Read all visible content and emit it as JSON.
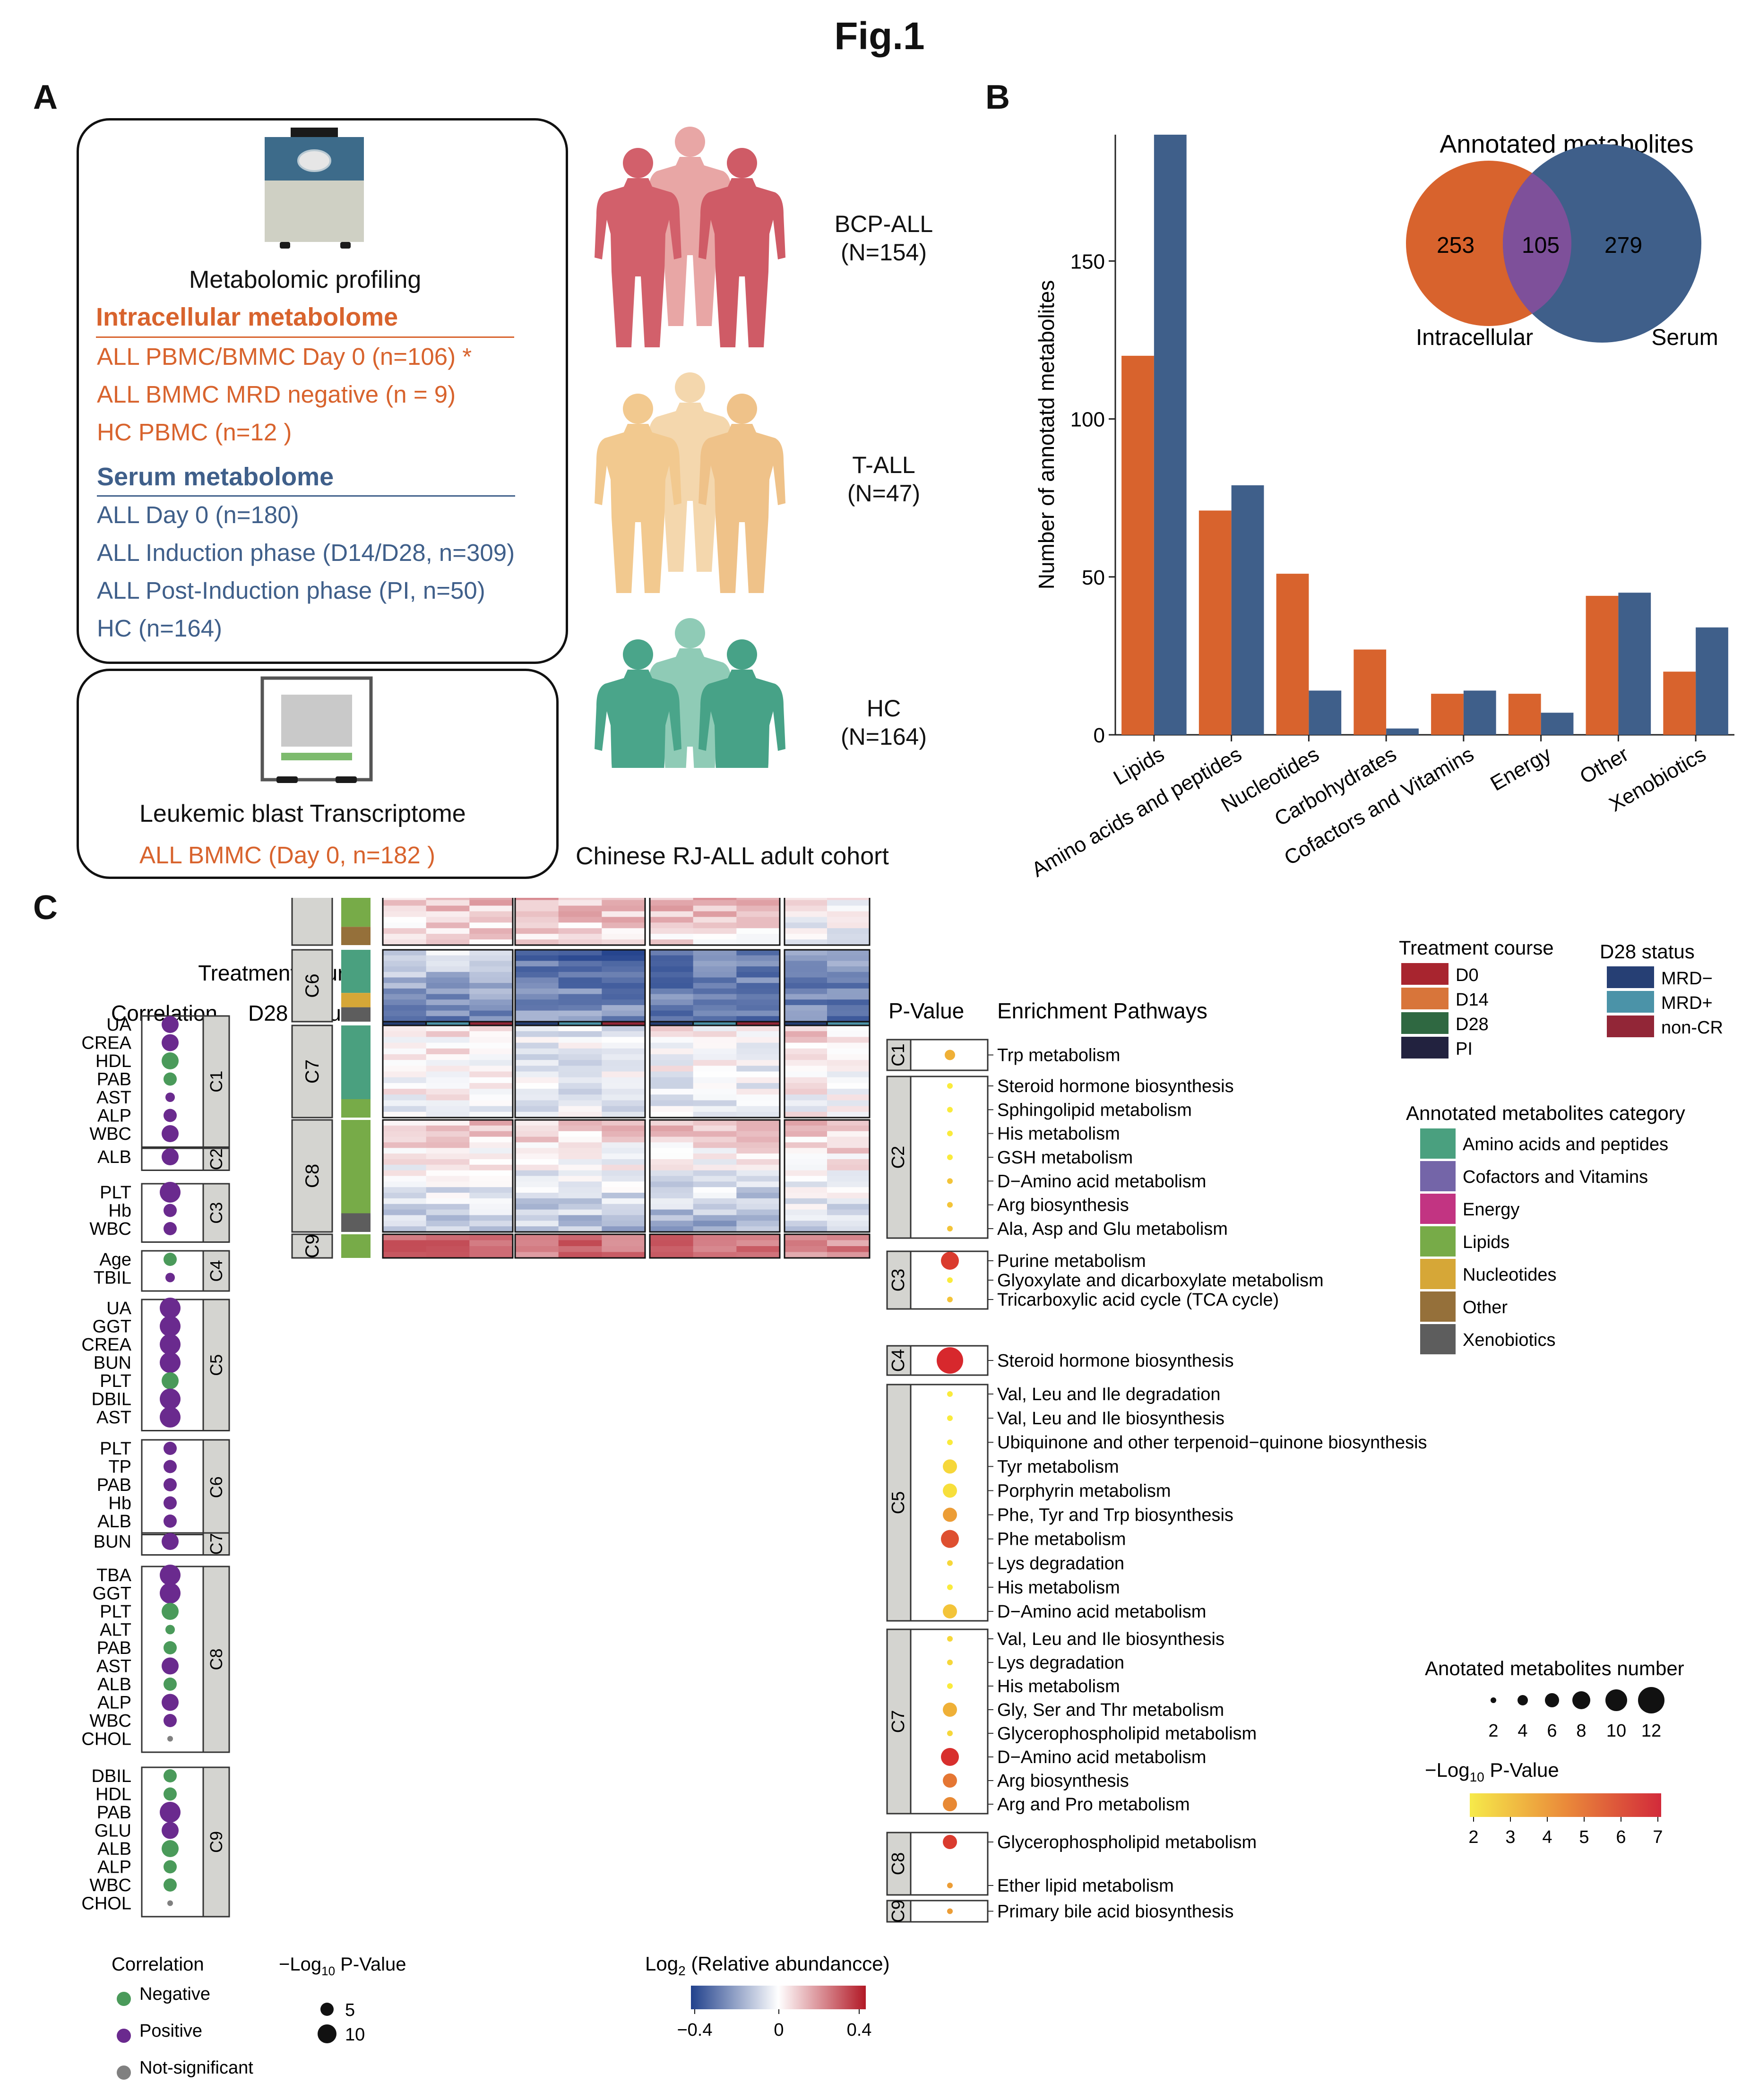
{
  "figure_title": "Fig.1",
  "panels": {
    "a": "A",
    "b": "B",
    "c": "C"
  },
  "panelA": {
    "metabolomic_profiling": "Metabolomic profiling",
    "intracellular_header": "Intracellular metabolome",
    "intracellular_items": [
      "ALL PBMC/BMMC Day 0 (n=106) *",
      "ALL BMMC MRD negative (n = 9)",
      "HC  PBMC (n=12 )"
    ],
    "serum_header": "Serum metabolome",
    "serum_items": [
      "ALL Day 0 (n=180)",
      "ALL Induction phase (D14/D28, n=309)",
      "ALL Post-Induction phase (PI, n=50)",
      "HC (n=164)"
    ],
    "transcriptome_title": "Leukemic blast Transcriptome",
    "transcriptome_item": "ALL BMMC (Day 0, n=182 )",
    "cohorts": [
      {
        "name": "BCP-ALL",
        "n": "(N=154)",
        "color": "#d2606b"
      },
      {
        "name": "T-ALL",
        "n": "(N=47)",
        "color": "#f2c98f"
      },
      {
        "name": "HC",
        "n": "(N=164)",
        "color": "#4aa58a"
      }
    ],
    "cohort_caption": "Chinese RJ-ALL adult cohort"
  },
  "chart_data": {
    "type": "bar",
    "ylabel": "Number of annotatd metabolites",
    "ylim": [
      0,
      190
    ],
    "yticks": [
      0,
      50,
      100,
      150
    ],
    "categories": [
      "Lipids",
      "Amino acids and peptides",
      "Nucleotides",
      "Carbohydrates",
      "Cofactors and Vitamins",
      "Energy",
      "Other",
      "Xenobiotics"
    ],
    "series": [
      {
        "name": "Intracellular",
        "color": "#d8632d",
        "values": [
          120,
          71,
          51,
          27,
          13,
          13,
          44,
          20
        ]
      },
      {
        "name": "Serum",
        "color": "#3f5f8a",
        "values": [
          190,
          79,
          14,
          2,
          14,
          7,
          45,
          34
        ]
      }
    ],
    "venn": {
      "title": "Annotated metabolites",
      "left_label": "Intracellular",
      "right_label": "Serum",
      "left_only": "253",
      "overlap": "105",
      "right_only": "279"
    }
  },
  "panelC": {
    "timepoints": [
      "D0",
      "D14",
      "D28",
      "PI"
    ],
    "treatment_course_label": "Treatment course",
    "d28_status_label": "D28 status",
    "correlation_label": "Correlation",
    "pvalue_label": "P-Value",
    "enrichment_label": "Enrichment Pathways",
    "clusters": [
      "C1",
      "C2",
      "C3",
      "C4",
      "C5",
      "C6",
      "C7",
      "C8",
      "C9"
    ],
    "correlation_groups": [
      {
        "cluster": "C1",
        "items": [
          [
            "UA",
            "pos",
            3
          ],
          [
            "CREA",
            "pos",
            3
          ],
          [
            "HDL",
            "neg",
            3
          ],
          [
            "PAB",
            "neg",
            2
          ],
          [
            "AST",
            "pos",
            1
          ],
          [
            "ALP",
            "pos",
            2
          ],
          [
            "WBC",
            "pos",
            3
          ]
        ]
      },
      {
        "cluster": "C2",
        "items": [
          [
            "ALB",
            "pos",
            3
          ]
        ]
      },
      {
        "cluster": "C3",
        "items": [
          [
            "PLT",
            "pos",
            4
          ],
          [
            "Hb",
            "pos",
            2
          ],
          [
            "WBC",
            "pos",
            2
          ]
        ]
      },
      {
        "cluster": "C4",
        "items": [
          [
            "Age",
            "neg",
            2
          ],
          [
            "TBIL",
            "pos",
            1
          ]
        ]
      },
      {
        "cluster": "C5",
        "items": [
          [
            "UA",
            "pos",
            4
          ],
          [
            "GGT",
            "pos",
            4
          ],
          [
            "CREA",
            "pos",
            4
          ],
          [
            "BUN",
            "pos",
            4
          ],
          [
            "PLT",
            "neg",
            3
          ],
          [
            "DBIL",
            "pos",
            4
          ],
          [
            "AST",
            "pos",
            4
          ]
        ]
      },
      {
        "cluster": "C6",
        "items": [
          [
            "PLT",
            "pos",
            2
          ],
          [
            "TP",
            "pos",
            2
          ],
          [
            "PAB",
            "pos",
            2
          ],
          [
            "Hb",
            "pos",
            2
          ],
          [
            "ALB",
            "pos",
            2
          ]
        ]
      },
      {
        "cluster": "C7",
        "items": [
          [
            "BUN",
            "pos",
            3
          ]
        ]
      },
      {
        "cluster": "C8",
        "items": [
          [
            "TBA",
            "pos",
            4
          ],
          [
            "GGT",
            "pos",
            4
          ],
          [
            "PLT",
            "neg",
            3
          ],
          [
            "ALT",
            "neg",
            1
          ],
          [
            "PAB",
            "neg",
            2
          ],
          [
            "AST",
            "pos",
            3
          ],
          [
            "ALB",
            "neg",
            2
          ],
          [
            "ALP",
            "pos",
            3
          ],
          [
            "WBC",
            "pos",
            2
          ],
          [
            "CHOL",
            "ns",
            0
          ]
        ]
      },
      {
        "cluster": "C9",
        "items": [
          [
            "DBIL",
            "neg",
            2
          ],
          [
            "HDL",
            "neg",
            2
          ],
          [
            "PAB",
            "pos",
            4
          ],
          [
            "GLU",
            "pos",
            3
          ],
          [
            "ALB",
            "neg",
            3
          ],
          [
            "ALP",
            "neg",
            2
          ],
          [
            "WBC",
            "neg",
            2
          ],
          [
            "CHOL",
            "ns",
            0
          ]
        ]
      }
    ],
    "pathways": [
      {
        "cluster": "C1",
        "items": [
          [
            "Trp metabolism",
            1,
            3.5
          ]
        ]
      },
      {
        "cluster": "C2",
        "items": [
          [
            "Steroid hormone biosynthesis",
            0,
            2
          ],
          [
            "Sphingolipid metabolism",
            0,
            2
          ],
          [
            "His metabolism",
            0,
            2
          ],
          [
            "GSH metabolism",
            0,
            2
          ],
          [
            "D−Amino acid metabolism",
            0,
            3
          ],
          [
            "Arg biosynthesis",
            0,
            3
          ],
          [
            "Ala, Asp and Glu metabolism",
            0,
            3
          ]
        ]
      },
      {
        "cluster": "C3",
        "items": [
          [
            "Purine metabolism",
            3,
            6.5
          ],
          [
            "Glyoxylate and dicarboxylate metabolism",
            0,
            2
          ],
          [
            "Tricarboxylic acid cycle (TCA cycle)",
            0,
            3
          ]
        ]
      },
      {
        "cluster": "C4",
        "items": [
          [
            "Steroid hormone biosynthesis",
            5,
            7
          ]
        ]
      },
      {
        "cluster": "C5",
        "items": [
          [
            "Val, Leu and Ile degradation",
            0,
            2
          ],
          [
            "Val, Leu and Ile biosynthesis",
            0,
            2
          ],
          [
            "Ubiquinone and other terpenoid−quinone biosynthesis",
            0,
            2
          ],
          [
            "Tyr metabolism",
            2,
            2.5
          ],
          [
            "Porphyrin metabolism",
            2,
            2.3
          ],
          [
            "Phe, Tyr and Trp biosynthesis",
            2,
            4
          ],
          [
            "Phe metabolism",
            3,
            6
          ],
          [
            "Lys degradation",
            0,
            2.5
          ],
          [
            "His metabolism",
            0,
            2
          ],
          [
            "D−Amino acid metabolism",
            2,
            3
          ]
        ]
      },
      {
        "cluster": "C7",
        "items": [
          [
            "Val, Leu and Ile biosynthesis",
            0,
            2.5
          ],
          [
            "Lys degradation",
            0,
            2.5
          ],
          [
            "His metabolism",
            0,
            2
          ],
          [
            "Gly, Ser and Thr metabolism",
            2,
            3.5
          ],
          [
            "Glycerophospholipid metabolism",
            0,
            2.5
          ],
          [
            "D−Amino acid metabolism",
            3,
            6.8
          ],
          [
            "Arg biosynthesis",
            2,
            5
          ],
          [
            "Arg and Pro metabolism",
            2,
            4.5
          ]
        ]
      },
      {
        "cluster": "C8",
        "items": [
          [
            "Glycerophospholipid metabolism",
            2,
            6.5
          ],
          [
            "Ether lipid metabolism",
            0,
            4
          ]
        ]
      },
      {
        "cluster": "C9",
        "items": [
          [
            "Primary bile acid biosynthesis",
            0,
            4
          ]
        ]
      }
    ],
    "legend": {
      "treatment_course_title": "Treatment course",
      "treatment_course": [
        [
          "D0",
          "#a8252f"
        ],
        [
          "D14",
          "#d8753a"
        ],
        [
          "D28",
          "#2f6841"
        ],
        [
          "PI",
          "#22223f"
        ]
      ],
      "d28_status_title": "D28 status",
      "d28_status": [
        [
          "MRD−",
          "#263f74"
        ],
        [
          "MRD+",
          "#4b93a8"
        ],
        [
          "non-CR",
          "#922637"
        ]
      ],
      "category_title": "Annotated metabolites category",
      "categories": [
        [
          "Amino acids and peptides",
          "#4aa07f"
        ],
        [
          "Cofactors and Vitamins",
          "#7465a8"
        ],
        [
          "Energy",
          "#c23482"
        ],
        [
          "Lipids",
          "#77ab48"
        ],
        [
          "Nucleotides",
          "#d6a737"
        ],
        [
          "Other",
          "#95703a"
        ],
        [
          "Xenobiotics",
          "#5d5d5d"
        ]
      ],
      "number_title": "Anotated metabolites number",
      "number_values": [
        "2",
        "4",
        "6",
        "8",
        "10",
        "12"
      ],
      "pvalue_title": "−Log",
      "pvalue_sub": "10",
      "pvalue_suffix": " P-Value",
      "pvalue_ticks": [
        "2",
        "3",
        "4",
        "5",
        "6",
        "7"
      ],
      "corr_title": "Correlation",
      "corr_items": [
        [
          "Negative",
          "#4a9a5a"
        ],
        [
          "Positive",
          "#6a2a8e"
        ],
        [
          "Not-significant",
          "#808080"
        ]
      ],
      "neglog_title": "−Log",
      "neglog_sub": "10",
      "neglog_suffix": " P-Value",
      "neglog_values": [
        "5",
        "10"
      ],
      "abund_title": "Log",
      "abund_sub": "2",
      "abund_suffix": " (Relative abundancce)",
      "abund_ticks": [
        "−0.4",
        "0",
        "0.4"
      ]
    }
  }
}
